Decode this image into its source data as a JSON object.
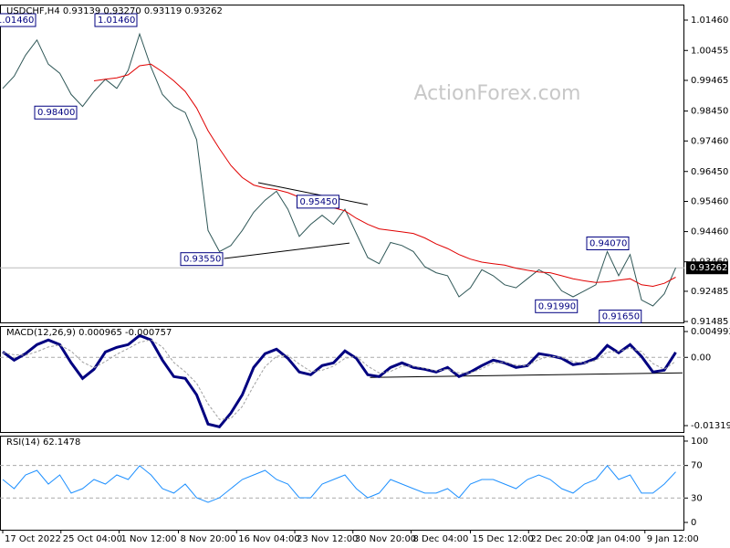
{
  "chart_data": [
    {
      "type": "line",
      "title": "USDCHF,H4  0.93139 0.93270 0.93119 0.93262",
      "watermark": "ActionForex.com",
      "xlim": [
        -0.24,
        59.76
      ],
      "ylim": [
        0.91455,
        1.01974
      ],
      "yticks": [
        {
          "value": 1.0146,
          "label": "1.01460"
        },
        1.00455,
        0.99465,
        {
          "value": 0.9845,
          "label": "0.98450"
        },
        {
          "value": 0.9746,
          "label": "0.97460"
        },
        {
          "value": 0.9645,
          "label": "0.96450"
        },
        {
          "value": 0.9546,
          "label": "0.95460"
        },
        {
          "value": 0.9446,
          "label": "0.94460"
        },
        {
          "value": 0.9346,
          "label": "0.93460"
        },
        0.92485,
        0.91485
      ],
      "current": {
        "value": 0.93262,
        "label": "0.93262"
      },
      "series": [
        {
          "name": "USDCHF",
          "color": "#2f5757",
          "values": [
            0.992,
            0.996,
            1.003,
            1.008,
            1.0,
            0.997,
            0.99,
            0.986,
            0.991,
            0.995,
            0.992,
            0.998,
            1.01,
            0.999,
            0.99,
            0.986,
            0.984,
            0.975,
            0.945,
            0.938,
            0.94,
            0.945,
            0.951,
            0.955,
            0.958,
            0.952,
            0.943,
            0.947,
            0.95,
            0.947,
            0.952,
            0.944,
            0.936,
            0.934,
            0.941,
            0.94,
            0.938,
            0.933,
            0.931,
            0.93,
            0.923,
            0.926,
            0.932,
            0.93,
            0.927,
            0.926,
            0.929,
            0.932,
            0.93,
            0.925,
            0.923,
            0.925,
            0.927,
            0.938,
            0.93,
            0.937,
            0.922,
            0.92,
            0.924,
            0.93262
          ]
        },
        {
          "name": "MA",
          "color": "#e00000",
          "values": [
            null,
            null,
            null,
            null,
            null,
            null,
            null,
            null,
            0.9945,
            0.995,
            0.9955,
            0.9965,
            0.9995,
            1.0,
            0.9975,
            0.9945,
            0.991,
            0.9855,
            0.978,
            0.972,
            0.9665,
            0.9625,
            0.96,
            0.959,
            0.9585,
            0.9575,
            0.956,
            0.9545,
            0.9535,
            0.9525,
            0.9515,
            0.949,
            0.947,
            0.9455,
            0.945,
            0.9445,
            0.944,
            0.9425,
            0.9405,
            0.939,
            0.937,
            0.9355,
            0.9345,
            0.934,
            0.9335,
            0.9325,
            0.9318,
            0.9312,
            0.931,
            0.93,
            0.929,
            0.9283,
            0.9278,
            0.928,
            0.9285,
            0.929,
            0.927,
            0.9265,
            0.9275,
            0.9295
          ]
        }
      ],
      "annotations": [
        {
          "x": -0.8,
          "value": 1.0146,
          "label": "1.01460"
        },
        {
          "x": 8.08,
          "value": 1.0146,
          "label": "1.01460"
        },
        {
          "x": 2.8,
          "value": 0.984,
          "label": "0.98400"
        },
        {
          "x": 25.8,
          "value": 0.9545,
          "label": "0.95450"
        },
        {
          "x": 15.6,
          "value": 0.9355,
          "label": "0.93550"
        },
        {
          "x": 51.2,
          "value": 0.9407,
          "label": "0.94070"
        },
        {
          "x": 46.7,
          "value": 0.9199,
          "label": "0.91990"
        },
        {
          "x": 52.3,
          "value": 0.9165,
          "label": "0.91650"
        }
      ],
      "trendlines": [
        {
          "x": [
            22.4,
            32.0
          ],
          "y": [
            0.9608,
            0.9535
          ]
        },
        {
          "x": [
            19.4,
            30.4
          ],
          "y": [
            0.9357,
            0.9408
          ]
        }
      ]
    },
    {
      "type": "line",
      "title": "MACD(12,26,9) 0.000965 -0.000757",
      "xlim": [
        -0.24,
        59.76
      ],
      "ylim": [
        -0.01443,
        0.00605
      ],
      "yticks": [
        0.004993,
        {
          "value": 0,
          "label": "0.00"
        },
        -0.013193
      ],
      "levels": [
        0
      ],
      "series": [
        {
          "name": "MACD",
          "color": "#000080",
          "values": [
            0.00106,
            -0.00053,
            0.00071,
            0.00247,
            0.00336,
            0.00247,
            -0.00106,
            -0.00406,
            -0.0023,
            0.00106,
            0.00194,
            0.00247,
            0.00424,
            0.00336,
            -0.00053,
            -0.00371,
            -0.00406,
            -0.00724,
            -0.01289,
            -0.01342,
            -0.01077,
            -0.00724,
            -0.00194,
            0.00071,
            0.00159,
            -0.00018,
            -0.00283,
            -0.00336,
            -0.00159,
            -0.00106,
            0.00124,
            -0.00018,
            -0.00336,
            -0.00371,
            -0.00194,
            -0.00106,
            -0.00194,
            -0.0023,
            -0.00283,
            -0.00194,
            -0.00371,
            -0.00283,
            -0.00159,
            -0.00053,
            -0.00106,
            -0.00194,
            -0.00159,
            0.00071,
            0.00035,
            -0.00018,
            -0.00141,
            -0.00106,
            -0.00018,
            0.0023,
            0.00088,
            0.00247,
            0.00018,
            -0.00283,
            -0.00247,
            0.000965
          ]
        },
        {
          "name": "Signal",
          "color": "#a0a0a0",
          "values": [
            0.0009,
            0.0005,
            0.0004,
            0.0011,
            0.002,
            0.0024,
            0.0012,
            -0.0009,
            -0.002,
            -0.0008,
            0.0006,
            0.0017,
            0.0029,
            0.0034,
            0.002,
            -0.001,
            -0.0028,
            -0.005,
            -0.009,
            -0.012,
            -0.0118,
            -0.0095,
            -0.0055,
            -0.0018,
            0.0002,
            0.0004,
            -0.0013,
            -0.0027,
            -0.0025,
            -0.0017,
            -0.0002,
            0.0002,
            -0.0017,
            -0.003,
            -0.0027,
            -0.0017,
            -0.0017,
            -0.0021,
            -0.0026,
            -0.0023,
            -0.003,
            -0.003,
            -0.0022,
            -0.0011,
            -0.0009,
            -0.0015,
            -0.0016,
            -0.0004,
            0.0002,
            0.0,
            -0.0008,
            -0.0011,
            -0.0006,
            0.001,
            0.0012,
            0.0018,
            0.0011,
            -0.0012,
            -0.0023,
            -0.000757
          ]
        }
      ],
      "trendlines": [
        {
          "x": [
            32.2,
            59.6
          ],
          "y": [
            -0.00389,
            -0.003
          ]
        }
      ]
    },
    {
      "type": "line",
      "title": "RSI(14) 62.1478",
      "xlim": [
        -0.24,
        59.76
      ],
      "ylim": [
        -9,
        106.7
      ],
      "yticks": [
        100,
        70,
        30,
        0
      ],
      "levels": [
        70,
        30
      ],
      "xticks": [
        {
          "value": 0,
          "label": "17 Oct 2022"
        },
        {
          "value": 5.1,
          "label": "25 Oct 04:00"
        },
        {
          "value": 10.2,
          "label": "1 Nov 12:00"
        },
        {
          "value": 15.4,
          "label": "8 Nov 20:00"
        },
        {
          "value": 20.5,
          "label": "16 Nov 04:00"
        },
        {
          "value": 25.6,
          "label": "23 Nov 12:00"
        },
        {
          "value": 30.7,
          "label": "30 Nov 20:00"
        },
        {
          "value": 35.8,
          "label": "8 Dec 04:00"
        },
        {
          "value": 41,
          "label": "15 Dec 12:00"
        },
        {
          "value": 46.1,
          "label": "22 Dec 20:00"
        },
        {
          "value": 51.2,
          "label": "2 Jan 04:00"
        },
        {
          "value": 56.3,
          "label": "9 Jan 12:00"
        }
      ],
      "series": [
        {
          "name": "RSI",
          "color": "#1e90ff",
          "values": [
            52.8,
            41.6,
            58.4,
            64.0,
            47.2,
            58.4,
            36.0,
            41.6,
            52.8,
            47.2,
            58.4,
            52.8,
            69.7,
            58.4,
            41.6,
            36.0,
            47.2,
            30.3,
            24.7,
            30.3,
            41.6,
            52.8,
            58.4,
            64.0,
            52.8,
            47.2,
            30.3,
            30.3,
            47.2,
            52.8,
            58.4,
            41.6,
            30.3,
            36.0,
            52.8,
            47.2,
            41.6,
            36.0,
            36.0,
            41.6,
            30.3,
            47.2,
            52.8,
            52.8,
            47.2,
            41.6,
            52.8,
            58.4,
            52.8,
            41.6,
            36.0,
            47.2,
            52.8,
            69.7,
            52.8,
            58.4,
            36.0,
            36.0,
            47.2,
            62.1478
          ]
        }
      ]
    }
  ]
}
